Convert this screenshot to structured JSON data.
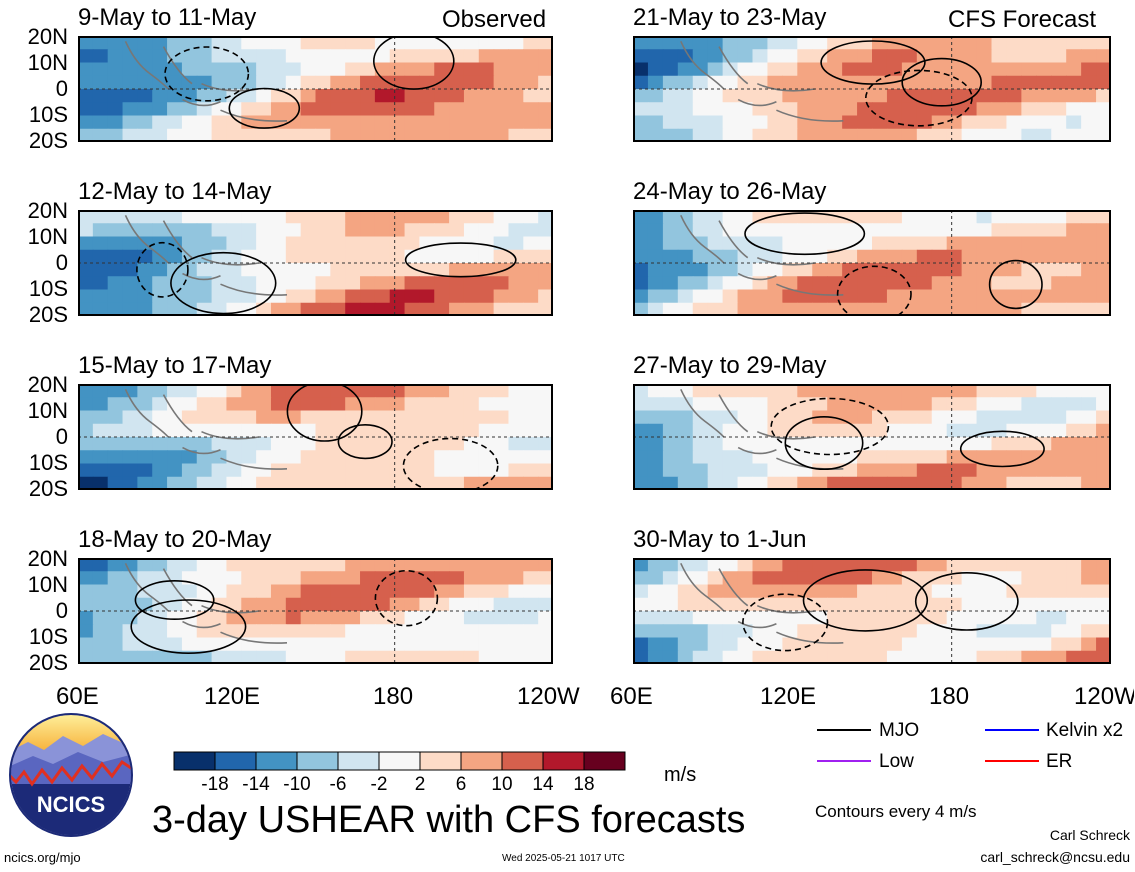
{
  "labels": {
    "observed": "Observed",
    "forecast": "CFS Forecast"
  },
  "latitudes": [
    "20N",
    "10N",
    "0",
    "10S",
    "20S"
  ],
  "longitudes": [
    "60E",
    "120E",
    "180",
    "120W"
  ],
  "panels": [
    {
      "title": "9-May to 11-May",
      "kind": "observed"
    },
    {
      "title": "12-May to 14-May",
      "kind": "observed"
    },
    {
      "title": "15-May to 17-May",
      "kind": "observed"
    },
    {
      "title": "18-May to 20-May",
      "kind": "observed"
    },
    {
      "title": "21-May to 23-May",
      "kind": "forecast"
    },
    {
      "title": "24-May to 26-May",
      "kind": "forecast"
    },
    {
      "title": "27-May to 29-May",
      "kind": "forecast"
    },
    {
      "title": "30-May to 1-Jun",
      "kind": "forecast"
    }
  ],
  "colorbar": {
    "ticks": [
      "-18",
      "-14",
      "-10",
      "-6",
      "-2",
      "2",
      "6",
      "10",
      "14",
      "18"
    ],
    "colors": [
      "#08306b",
      "#2166ac",
      "#4393c3",
      "#92c5de",
      "#d1e5f0",
      "#f7f7f7",
      "#fddbc7",
      "#f4a582",
      "#d6604d",
      "#b2182b",
      "#67001f"
    ],
    "units": "m/s"
  },
  "legend": {
    "items": [
      {
        "label": "MJO",
        "color": "#000000"
      },
      {
        "label": "Kelvin x2",
        "color": "#0000ff"
      },
      {
        "label": "Low",
        "color": "#a020f0"
      },
      {
        "label": "ER",
        "color": "#ff0000"
      }
    ],
    "contour_note": "Contours every 4 m/s"
  },
  "footer": {
    "main_title": "3-day USHEAR with CFS forecasts",
    "logo_text": "NCICS",
    "url": "ncics.org/mjo",
    "timestamp": "Wed 2025-05-21 1017 UTC",
    "author": "Carl Schreck",
    "email": "carl_schreck@ncsu.edu"
  }
}
